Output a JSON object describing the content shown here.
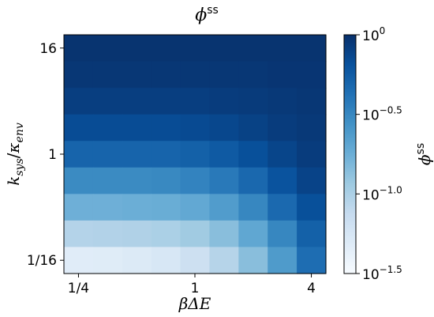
{
  "chart_data": {
    "type": "heatmap",
    "title": "ϕ",
    "title_superscript": "ss",
    "xlabel": "βΔE",
    "ylabel_parts": {
      "k1": "k",
      "s1": "sys",
      "slash": "/",
      "k2": "κ",
      "s2": "env"
    },
    "x_ticks": [
      {
        "label": "1/4",
        "value": 0.25
      },
      {
        "label": "1",
        "value": 1
      },
      {
        "label": "4",
        "value": 4
      }
    ],
    "y_ticks": [
      {
        "label": "16",
        "value": 16
      },
      {
        "label": "1",
        "value": 1
      },
      {
        "label": "1/16",
        "value": 0.0625
      }
    ],
    "x_values": [
      0.25,
      0.354,
      0.5,
      0.707,
      1,
      1.414,
      2,
      2.828,
      4
    ],
    "y_values": [
      16,
      8,
      4,
      2,
      1,
      0.5,
      0.25,
      0.125,
      0.0625
    ],
    "z_log10": [
      [
        -0.02,
        -0.02,
        -0.02,
        -0.02,
        -0.02,
        -0.02,
        -0.02,
        -0.02,
        -0.02
      ],
      [
        -0.04,
        -0.04,
        -0.04,
        -0.04,
        -0.04,
        -0.04,
        -0.04,
        -0.03,
        -0.03
      ],
      [
        -0.08,
        -0.08,
        -0.08,
        -0.08,
        -0.08,
        -0.07,
        -0.06,
        -0.05,
        -0.04
      ],
      [
        -0.16,
        -0.16,
        -0.16,
        -0.16,
        -0.15,
        -0.13,
        -0.1,
        -0.07,
        -0.05
      ],
      [
        -0.3,
        -0.3,
        -0.3,
        -0.3,
        -0.28,
        -0.24,
        -0.18,
        -0.12,
        -0.07
      ],
      [
        -0.52,
        -0.52,
        -0.52,
        -0.51,
        -0.48,
        -0.42,
        -0.32,
        -0.2,
        -0.11
      ],
      [
        -0.76,
        -0.76,
        -0.75,
        -0.74,
        -0.71,
        -0.63,
        -0.5,
        -0.33,
        -0.18
      ],
      [
        -1.04,
        -1.03,
        -1.02,
        -1.0,
        -0.95,
        -0.86,
        -0.7,
        -0.5,
        -0.28
      ],
      [
        -1.33,
        -1.32,
        -1.3,
        -1.26,
        -1.18,
        -1.05,
        -0.86,
        -0.62,
        -0.35
      ]
    ],
    "colorbar": {
      "label": "ϕ",
      "label_superscript": "ss",
      "scale": "log",
      "range_log10": [
        -1.5,
        0
      ],
      "colormap": "Blues",
      "ticks": [
        {
          "base": "10",
          "exp": "0",
          "value": 0
        },
        {
          "base": "10",
          "exp": "−0.5",
          "value": -0.5
        },
        {
          "base": "10",
          "exp": "−1.0",
          "value": -1.0
        },
        {
          "base": "10",
          "exp": "−1.5",
          "value": -1.5
        }
      ]
    }
  }
}
